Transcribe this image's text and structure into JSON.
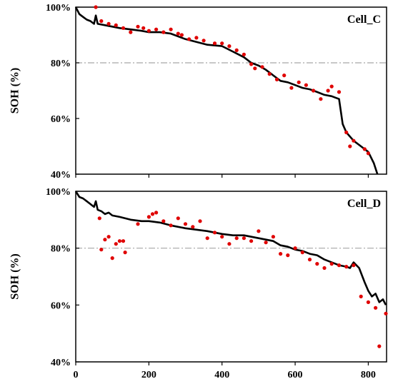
{
  "chart_data": [
    {
      "type": "line",
      "title": "Cell_C",
      "xlabel": "",
      "ylabel": "SOH (%)",
      "xlim": [
        0,
        850
      ],
      "ylim": [
        40,
        100
      ],
      "y_ticks": [
        "40%",
        "60%",
        "80%",
        "100%"
      ],
      "y_tick_values": [
        40,
        60,
        80,
        100
      ],
      "reference_line": {
        "y": 80,
        "style": "dash-dot",
        "color": "#a6a6a6"
      },
      "grid": false,
      "series": [
        {
          "kind": "line",
          "color": "#000000",
          "x": [
            0,
            10,
            20,
            30,
            40,
            50,
            55,
            60,
            80,
            100,
            120,
            150,
            180,
            200,
            230,
            260,
            300,
            330,
            360,
            400,
            430,
            460,
            480,
            500,
            520,
            540,
            560,
            580,
            600,
            620,
            640,
            660,
            680,
            700,
            710,
            720,
            730,
            740,
            760,
            780,
            800,
            815,
            825
          ],
          "y": [
            100,
            97.5,
            96.5,
            95.5,
            95,
            94,
            97,
            94,
            93.5,
            93,
            92.5,
            92,
            91.5,
            91,
            91,
            90.5,
            88.5,
            87.5,
            86.5,
            86,
            84,
            82,
            80,
            79,
            77.5,
            75.5,
            73.5,
            73,
            72,
            71,
            70.5,
            69.5,
            68.5,
            68,
            67.5,
            67,
            58,
            55,
            52,
            50,
            48,
            44,
            40
          ]
        },
        {
          "kind": "scatter",
          "color": "#e00000",
          "x": [
            55,
            70,
            90,
            110,
            130,
            150,
            170,
            185,
            200,
            220,
            240,
            260,
            280,
            290,
            310,
            330,
            350,
            380,
            400,
            420,
            440,
            460,
            480,
            490,
            510,
            530,
            550,
            570,
            590,
            610,
            630,
            650,
            670,
            690,
            700,
            720,
            740,
            750,
            760,
            790,
            800
          ],
          "y": [
            100,
            95,
            94,
            93.5,
            92.5,
            91,
            93,
            92.5,
            91.5,
            92,
            91,
            92,
            90.5,
            90,
            88.5,
            89,
            88,
            87,
            87,
            86,
            84.5,
            83,
            79.5,
            78,
            78.5,
            76,
            74,
            75.5,
            71,
            73,
            72,
            70,
            67,
            70,
            71.5,
            69.5,
            55,
            50,
            52,
            49,
            47.5
          ]
        }
      ]
    },
    {
      "type": "line",
      "title": "Cell_D",
      "xlabel": "",
      "ylabel": "SOH (%)",
      "xlim": [
        0,
        850
      ],
      "ylim": [
        40,
        100
      ],
      "x_ticks": [
        "0",
        "200",
        "400",
        "600",
        "800"
      ],
      "x_tick_values": [
        0,
        200,
        400,
        600,
        800
      ],
      "y_ticks": [
        "40%",
        "60%",
        "80%",
        "100%"
      ],
      "y_tick_values": [
        40,
        60,
        80,
        100
      ],
      "reference_line": {
        "y": 80,
        "style": "dash-dot",
        "color": "#a6a6a6"
      },
      "grid": false,
      "series": [
        {
          "kind": "line",
          "color": "#000000",
          "x": [
            0,
            10,
            20,
            30,
            40,
            50,
            55,
            60,
            70,
            80,
            90,
            100,
            120,
            150,
            180,
            200,
            230,
            260,
            300,
            330,
            360,
            400,
            430,
            460,
            480,
            500,
            520,
            540,
            560,
            580,
            600,
            620,
            640,
            660,
            680,
            700,
            720,
            740,
            750,
            760,
            775,
            790,
            800,
            810,
            820,
            830,
            840,
            848
          ],
          "y": [
            100,
            98,
            97.5,
            96.5,
            95.5,
            94.5,
            96.5,
            93.5,
            93,
            92,
            92.5,
            91.5,
            91,
            90,
            89.5,
            89.5,
            89,
            88,
            87,
            86.5,
            86,
            85,
            84.5,
            84.5,
            84,
            83.5,
            83,
            82.5,
            81,
            80.5,
            79.5,
            79,
            78,
            77.5,
            76,
            75,
            74,
            73.5,
            73,
            75,
            73,
            68,
            65,
            63,
            64,
            61,
            62,
            60
          ]
        },
        {
          "kind": "scatter",
          "color": "#e00000",
          "x": [
            65,
            70,
            80,
            90,
            100,
            110,
            120,
            130,
            135,
            170,
            200,
            210,
            220,
            240,
            260,
            280,
            300,
            320,
            340,
            360,
            380,
            400,
            420,
            440,
            460,
            480,
            500,
            520,
            540,
            560,
            580,
            600,
            620,
            640,
            660,
            680,
            700,
            720,
            740,
            760,
            780,
            800,
            820,
            830,
            848
          ],
          "y": [
            90.5,
            79.5,
            83,
            84,
            76.5,
            81.5,
            82.5,
            82.5,
            78.5,
            88.5,
            91,
            92,
            92.5,
            89.5,
            88,
            90.5,
            88.5,
            87.5,
            89.5,
            83.5,
            85.5,
            84,
            81.5,
            83.5,
            83.5,
            82.5,
            86,
            82,
            84,
            78,
            77.5,
            80,
            78.5,
            76,
            74.5,
            73,
            74.5,
            74,
            73.5,
            74,
            63,
            61,
            59,
            45.5,
            57
          ]
        }
      ]
    }
  ]
}
